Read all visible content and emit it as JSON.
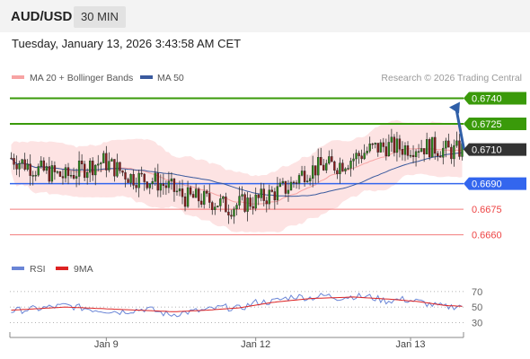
{
  "header": {
    "pair": "AUD/USD",
    "timeframe": "30 MIN"
  },
  "datetime": "Tuesday, January 13, 2026 3:43:58 AM CET",
  "legend": {
    "ma_bb": "MA 20 + Bollinger Bands",
    "ma50": "MA 50"
  },
  "credit": "Research © 2026 Trading Central",
  "colors": {
    "bb": "#f7a3a3",
    "bb_fill": "#fde3e3",
    "ma50": "#3a5a9e",
    "green": "#3a9a0a",
    "blue": "#3366ee",
    "red": "#ee4444",
    "arrow": "#2f5fa8",
    "rsi": "#6a85d6",
    "rsi_ma": "#dd2222"
  },
  "chart_data": [
    {
      "type": "candlestick",
      "symbol": "AUD/USD",
      "interval": "30 MIN",
      "ylim": [
        0.6653,
        0.6745
      ],
      "x_ticks": [
        "Jan 9",
        "Jan 12",
        "Jan 13"
      ],
      "levels": [
        {
          "value": 0.674,
          "label": "0.6740",
          "kind": "target",
          "color": "#3a9a0a"
        },
        {
          "value": 0.6725,
          "label": "0.6725",
          "kind": "resistance",
          "color": "#3a9a0a"
        },
        {
          "value": 0.671,
          "label": "0.6710",
          "kind": "last",
          "color": "#333333"
        },
        {
          "value": 0.669,
          "label": "0.6690",
          "kind": "pivot",
          "color": "#3366ee"
        },
        {
          "value": 0.6675,
          "label": "0.6675",
          "kind": "support",
          "color": "#ee4444"
        },
        {
          "value": 0.666,
          "label": "0.6660",
          "kind": "support",
          "color": "#ee4444"
        }
      ],
      "anchors": [
        [
          0,
          0.6705
        ],
        [
          10,
          0.6698
        ],
        [
          20,
          0.6694
        ],
        [
          28,
          0.67
        ],
        [
          34,
          0.6703
        ],
        [
          44,
          0.6694
        ],
        [
          52,
          0.6692
        ],
        [
          58,
          0.6688
        ],
        [
          64,
          0.6682
        ],
        [
          70,
          0.6681
        ],
        [
          76,
          0.6679
        ],
        [
          80,
          0.6676
        ],
        [
          84,
          0.6678
        ],
        [
          90,
          0.668
        ],
        [
          96,
          0.6684
        ],
        [
          102,
          0.6688
        ],
        [
          108,
          0.6697
        ],
        [
          114,
          0.67
        ],
        [
          120,
          0.6701
        ],
        [
          126,
          0.6705
        ],
        [
          132,
          0.671
        ],
        [
          138,
          0.6712
        ],
        [
          144,
          0.6711
        ],
        [
          150,
          0.6712
        ],
        [
          156,
          0.6711
        ],
        [
          162,
          0.6709
        ],
        [
          166,
          0.671
        ]
      ],
      "series": [
        {
          "name": "MA 20 + Bollinger Bands",
          "role": "bollinger"
        },
        {
          "name": "MA 50",
          "role": "ma"
        }
      ]
    },
    {
      "type": "line",
      "name": "RSI",
      "ylim": [
        20,
        78
      ],
      "y_ticks": [
        70,
        50,
        30
      ],
      "series": [
        {
          "name": "RSI",
          "anchors": [
            [
              0,
              45
            ],
            [
              10,
              48
            ],
            [
              20,
              52
            ],
            [
              30,
              47
            ],
            [
              40,
              44
            ],
            [
              50,
              48
            ],
            [
              58,
              40
            ],
            [
              66,
              44
            ],
            [
              72,
              46
            ],
            [
              78,
              50
            ],
            [
              84,
              48
            ],
            [
              90,
              56
            ],
            [
              96,
              57
            ],
            [
              104,
              64
            ],
            [
              110,
              62
            ],
            [
              116,
              65
            ],
            [
              120,
              62
            ],
            [
              126,
              64
            ],
            [
              132,
              63
            ],
            [
              138,
              58
            ],
            [
              144,
              60
            ],
            [
              150,
              57
            ],
            [
              156,
              52
            ],
            [
              160,
              50
            ],
            [
              166,
              52
            ]
          ]
        },
        {
          "name": "9MA",
          "anchors": [
            [
              0,
              46
            ],
            [
              20,
              50
            ],
            [
              40,
              47
            ],
            [
              60,
              44
            ],
            [
              72,
              46
            ],
            [
              84,
              49
            ],
            [
              96,
              56
            ],
            [
              110,
              61
            ],
            [
              126,
              63
            ],
            [
              140,
              60
            ],
            [
              150,
              57
            ],
            [
              160,
              52
            ],
            [
              166,
              51
            ]
          ]
        }
      ]
    }
  ]
}
